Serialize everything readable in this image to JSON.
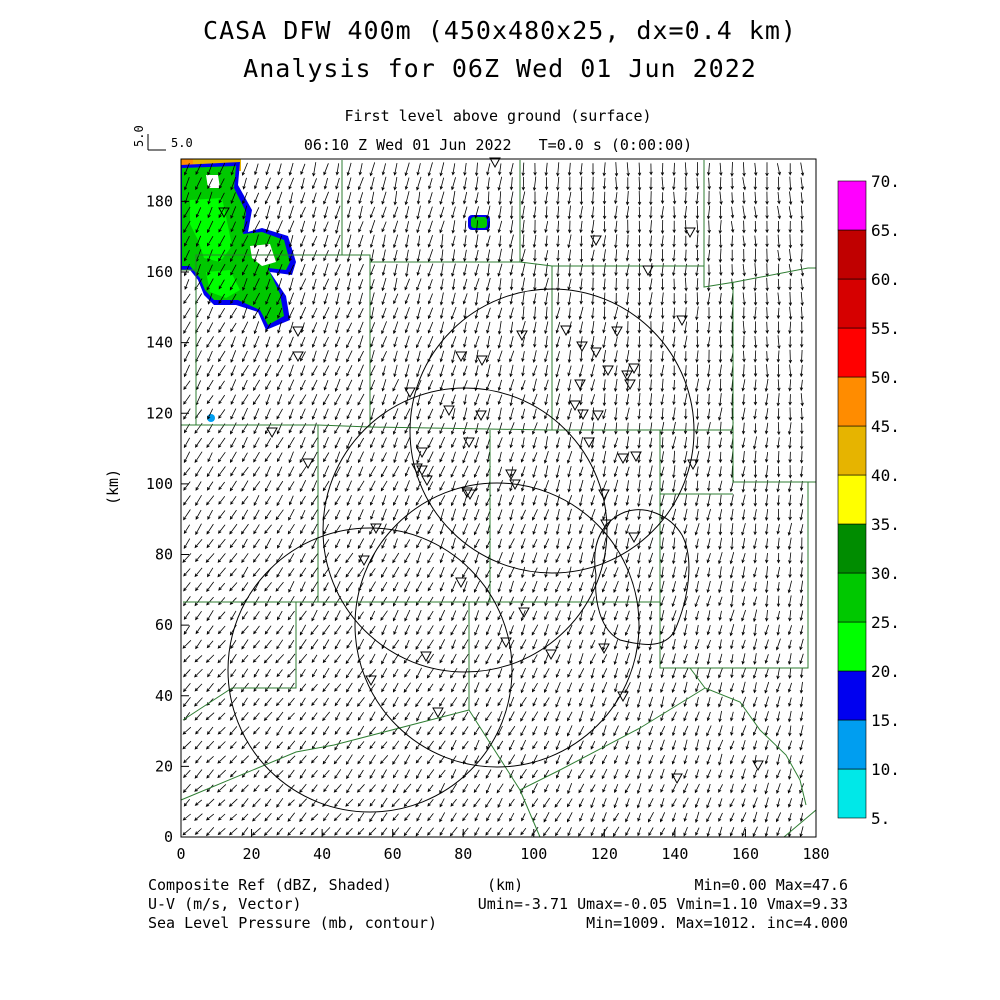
{
  "header": {
    "title_line1": "CASA DFW 400m (450x480x25, dx=0.4 km)",
    "title_line2": "Analysis for 06Z Wed 01 Jun 2022",
    "level_label": "First level above ground (surface)",
    "time_label": "06:10 Z Wed 01 Jun 2022   T=0.0 s (0:00:00)",
    "vector_ref_label": "5.0"
  },
  "axes": {
    "x_label": "(km)",
    "y_label": "(km)",
    "x_ticks": [
      "0",
      "20",
      "40",
      "60",
      "80",
      "100",
      "120",
      "140",
      "160",
      "180"
    ],
    "y_ticks": [
      "0",
      "20",
      "40",
      "60",
      "80",
      "100",
      "120",
      "140",
      "160",
      "180"
    ],
    "x_range": [
      0,
      180
    ],
    "y_range": [
      0,
      192
    ]
  },
  "colorbar": {
    "labels": [
      "5.",
      "10.",
      "15.",
      "20.",
      "25.",
      "30.",
      "35.",
      "40.",
      "45.",
      "50.",
      "55.",
      "60.",
      "65.",
      "70."
    ],
    "colors": [
      "#00e8e8",
      "#009ef0",
      "#0000f0",
      "#00ff00",
      "#00c800",
      "#008c00",
      "#ffff00",
      "#e6b400",
      "#ff8c00",
      "#ff0000",
      "#d60000",
      "#c00000",
      "#ff00ff"
    ]
  },
  "footer": {
    "field1_name": "Composite Ref (dBZ, Shaded)",
    "field1_stats": "Min=0.00 Max=47.6",
    "field2_name": "U-V (m/s, Vector)",
    "field2_stats": "Umin=-3.71 Umax=-0.05 Vmin=1.10 Vmax=9.33",
    "field3_name": "Sea Level Pressure (mb, contour)",
    "field3_stats": "Min=1009. Max=1012. inc=4.000",
    "x_unit": "(km)"
  }
}
